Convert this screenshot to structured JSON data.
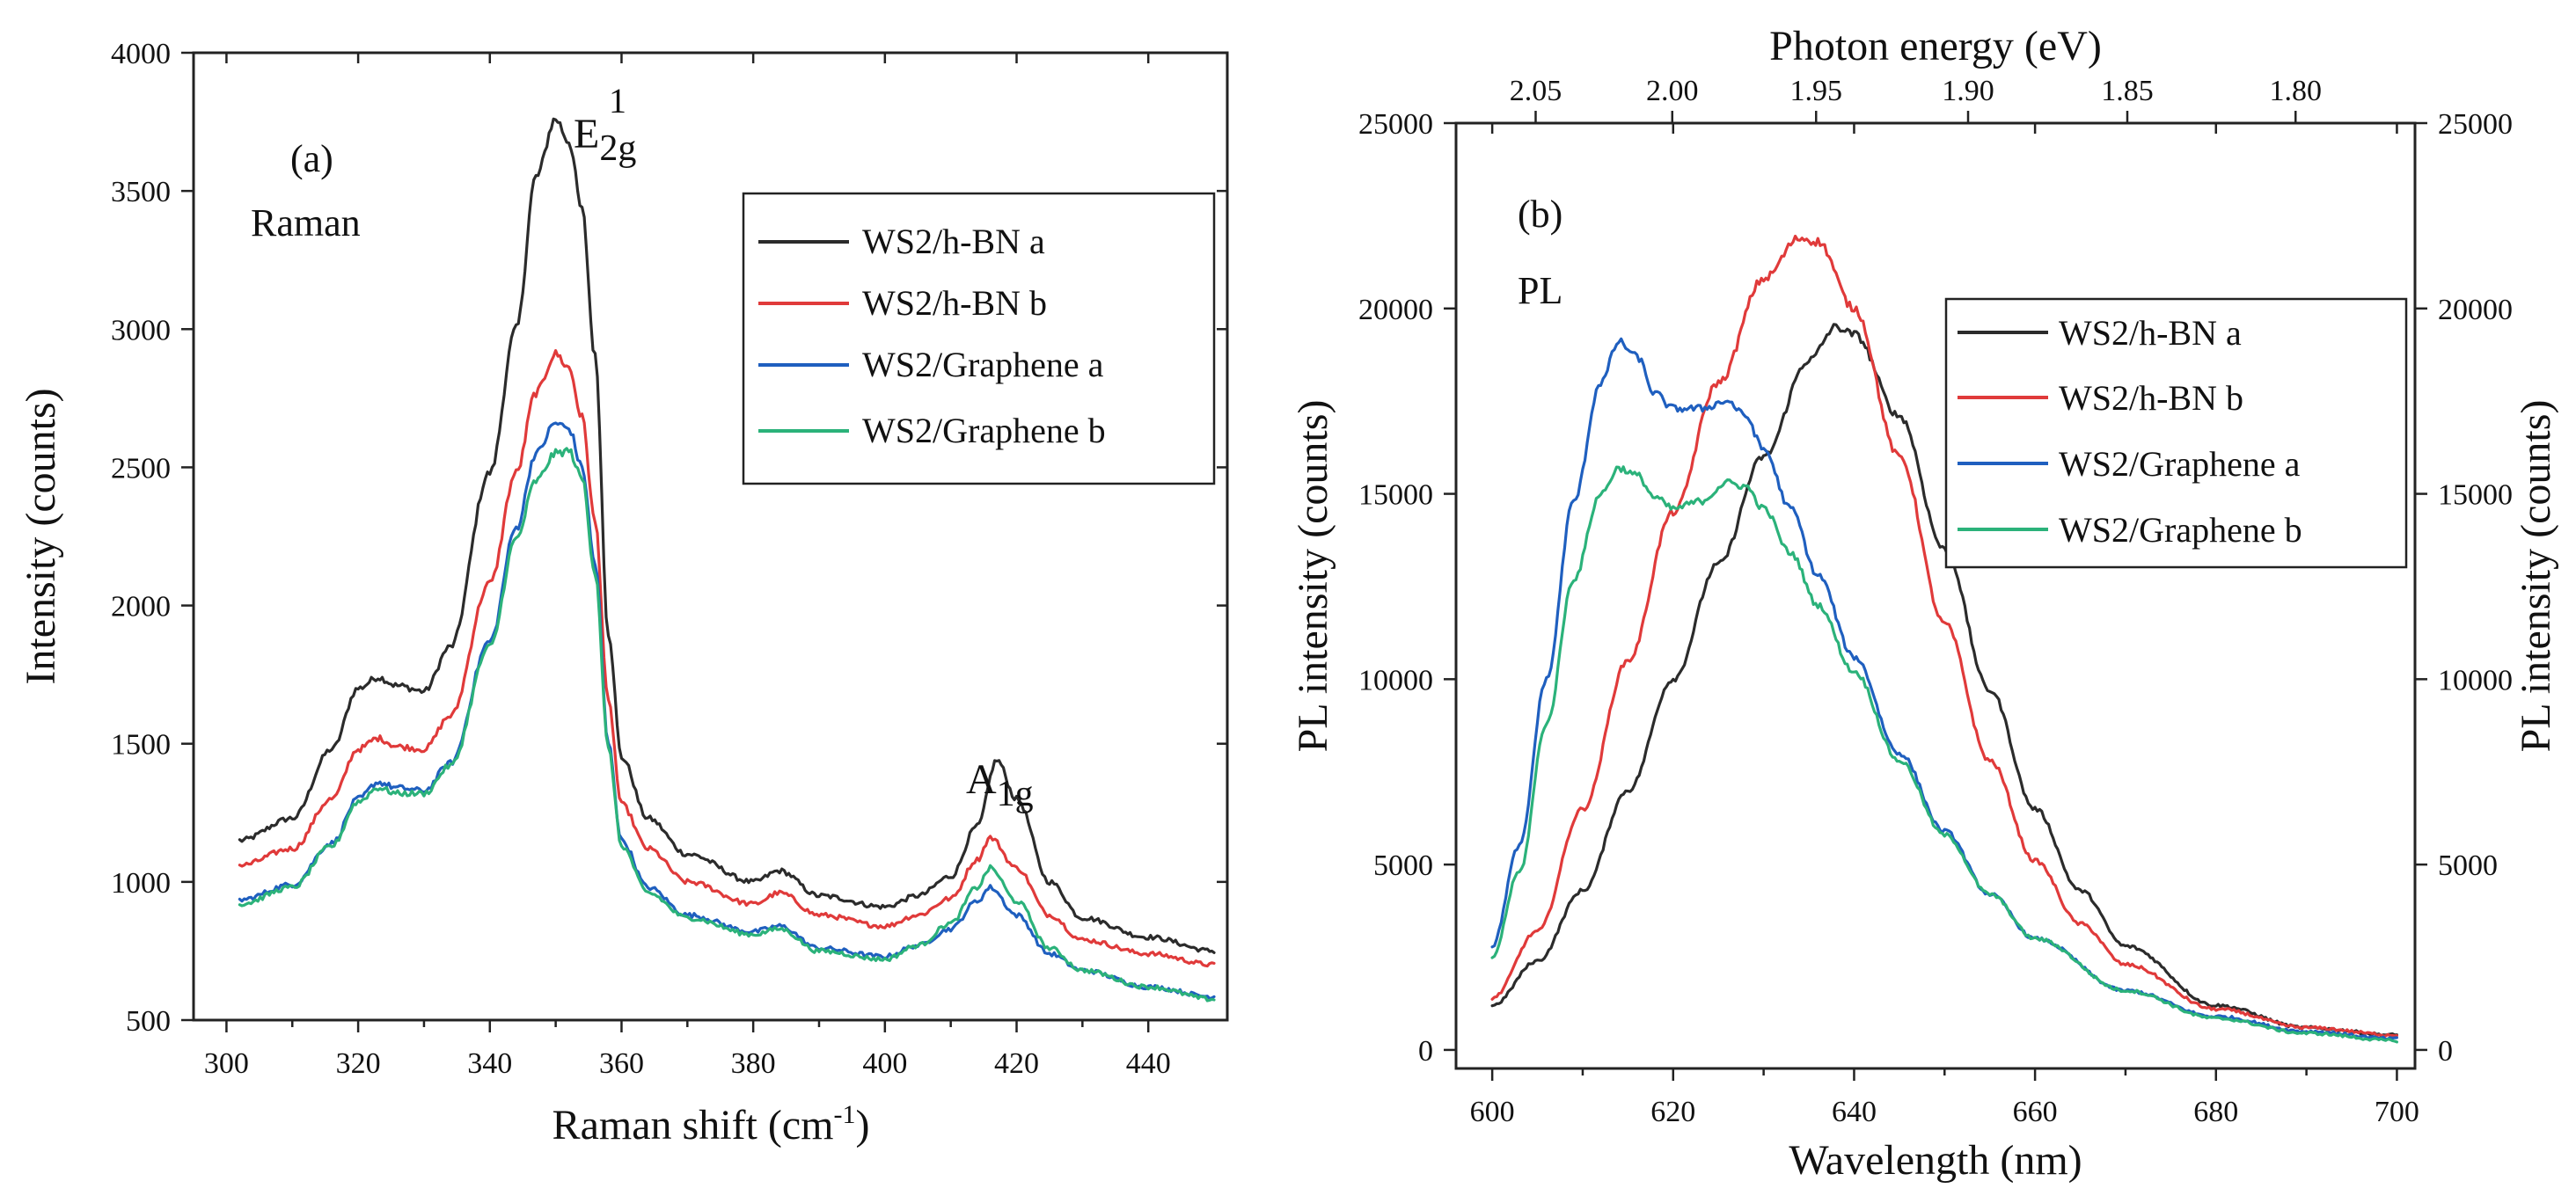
{
  "chart_data": [
    {
      "panel": "(a)",
      "type": "line",
      "annotation": "Raman",
      "xlabel": "Raman shift (cm",
      "xlabel_sup": "-1",
      "xlabel_end": ")",
      "ylabel": "Intensity (counts)",
      "xlim": [
        295,
        452
      ],
      "ylim": [
        500,
        4000
      ],
      "xticks": [
        300,
        320,
        340,
        360,
        380,
        400,
        420,
        440
      ],
      "yticks": [
        500,
        1000,
        1500,
        2000,
        2500,
        3000,
        3500,
        4000
      ],
      "peak_labels": [
        {
          "base": "E",
          "sub": "2g",
          "sup": "1",
          "x": 350,
          "y": 3760
        },
        {
          "base": "A",
          "sub": "1g",
          "x": 417,
          "y": 1480
        }
      ],
      "legend": [
        "WS2/h-BN a",
        "WS2/h-BN b",
        "WS2/Graphene a",
        "WS2/Graphene b"
      ],
      "series": [
        {
          "name": "WS2/h-BN a",
          "color": "#2b2b2b",
          "x": [
            302,
            310,
            316,
            320,
            323,
            326,
            330,
            334,
            340,
            344,
            347,
            350,
            352,
            354,
            356,
            358,
            360,
            364,
            370,
            380,
            384,
            390,
            400,
            405,
            410,
            414,
            417,
            420,
            425,
            430,
            440,
            450
          ],
          "y": [
            1150,
            1230,
            1480,
            1700,
            1740,
            1710,
            1690,
            1850,
            2480,
            3000,
            3550,
            3760,
            3680,
            3430,
            2900,
            1900,
            1450,
            1230,
            1100,
            1000,
            1040,
            950,
            910,
            950,
            1020,
            1200,
            1440,
            1300,
            1000,
            870,
            800,
            750
          ]
        },
        {
          "name": "WS2/h-BN b",
          "color": "#e03a3a",
          "x": [
            302,
            310,
            316,
            320,
            323,
            326,
            330,
            334,
            340,
            344,
            347,
            350,
            352,
            354,
            356,
            358,
            360,
            364,
            370,
            380,
            384,
            390,
            400,
            405,
            410,
            414,
            416,
            420,
            425,
            430,
            440,
            450
          ],
          "y": [
            1060,
            1120,
            1300,
            1480,
            1520,
            1490,
            1480,
            1600,
            2080,
            2480,
            2770,
            2910,
            2860,
            2680,
            2300,
            1650,
            1280,
            1120,
            1000,
            920,
            960,
            880,
            840,
            880,
            940,
            1080,
            1160,
            1050,
            880,
            790,
            740,
            700
          ]
        },
        {
          "name": "WS2/Graphene a",
          "color": "#1f5fbf",
          "x": [
            302,
            310,
            316,
            320,
            323,
            326,
            330,
            334,
            340,
            344,
            347,
            350,
            352,
            354,
            356,
            358,
            360,
            364,
            370,
            380,
            384,
            390,
            400,
            405,
            410,
            414,
            416,
            420,
            425,
            430,
            440,
            450
          ],
          "y": [
            935,
            990,
            1140,
            1300,
            1360,
            1340,
            1330,
            1430,
            1870,
            2280,
            2550,
            2660,
            2640,
            2500,
            2150,
            1500,
            1150,
            980,
            880,
            820,
            840,
            760,
            730,
            770,
            830,
            930,
            980,
            880,
            740,
            680,
            620,
            585
          ]
        },
        {
          "name": "WS2/Graphene b",
          "color": "#2bb27a",
          "x": [
            302,
            310,
            316,
            320,
            323,
            326,
            330,
            334,
            340,
            344,
            347,
            350,
            352,
            354,
            356,
            358,
            360,
            364,
            370,
            380,
            384,
            390,
            400,
            405,
            410,
            414,
            416,
            420,
            425,
            430,
            440,
            450
          ],
          "y": [
            920,
            980,
            1130,
            1290,
            1340,
            1320,
            1320,
            1420,
            1850,
            2240,
            2450,
            2550,
            2560,
            2460,
            2120,
            1480,
            1130,
            960,
            870,
            810,
            830,
            750,
            720,
            770,
            850,
            980,
            1050,
            930,
            760,
            680,
            620,
            575
          ]
        }
      ]
    },
    {
      "panel": "(b)",
      "type": "line",
      "annotation": "PL",
      "xlabel": "Wavelength (nm)",
      "ylabel": "PL intensity (counts)",
      "ylabel_right": "PL intensity (counts)",
      "x2label": "Photon energy (eV)",
      "xlim": [
        596,
        702
      ],
      "ylim": [
        -500,
        25000
      ],
      "xticks": [
        600,
        620,
        640,
        660,
        680,
        700
      ],
      "yticks": [
        0,
        5000,
        10000,
        15000,
        20000,
        25000
      ],
      "x2ticks": [
        {
          "label": "2.05",
          "nm": 604.8
        },
        {
          "label": "2.00",
          "nm": 619.9
        },
        {
          "label": "1.95",
          "nm": 635.8
        },
        {
          "label": "1.90",
          "nm": 652.6
        },
        {
          "label": "1.85",
          "nm": 670.2
        },
        {
          "label": "1.80",
          "nm": 688.8
        }
      ],
      "legend": [
        "WS2/h-BN a",
        "WS2/h-BN b",
        "WS2/Graphene a",
        "WS2/Graphene b"
      ],
      "series": [
        {
          "name": "WS2/h-BN a",
          "color": "#2b2b2b",
          "x": [
            600,
            605,
            610,
            615,
            620,
            625,
            630,
            635,
            638,
            640,
            645,
            650,
            655,
            660,
            665,
            670,
            680,
            690,
            700
          ],
          "y": [
            1200,
            2400,
            4300,
            7000,
            10000,
            13100,
            16000,
            18600,
            19500,
            19300,
            17100,
            13500,
            9700,
            6500,
            4300,
            2800,
            1200,
            600,
            400
          ]
        },
        {
          "name": "WS2/h-BN b",
          "color": "#e03a3a",
          "x": [
            600,
            605,
            610,
            615,
            620,
            625,
            630,
            634,
            636,
            640,
            645,
            650,
            655,
            660,
            665,
            670,
            680,
            690,
            700
          ],
          "y": [
            1400,
            3200,
            6500,
            10500,
            14500,
            18000,
            20800,
            21900,
            21800,
            20000,
            16000,
            11500,
            7800,
            5100,
            3400,
            2300,
            1100,
            600,
            400
          ]
        },
        {
          "name": "WS2/Graphene a",
          "color": "#1f5fbf",
          "x": [
            600,
            603,
            606,
            609,
            612,
            614,
            616,
            618,
            620,
            623,
            626,
            628,
            630,
            633,
            636,
            640,
            645,
            650,
            655,
            660,
            670,
            680,
            690,
            700
          ],
          "y": [
            2800,
            5500,
            10000,
            14800,
            18000,
            19100,
            18700,
            17700,
            17300,
            17300,
            17500,
            17100,
            16200,
            14600,
            12800,
            10600,
            8000,
            5900,
            4200,
            3000,
            1600,
            900,
            500,
            300
          ]
        },
        {
          "name": "WS2/Graphene b",
          "color": "#2bb27a",
          "x": [
            600,
            603,
            606,
            609,
            612,
            614,
            616,
            618,
            620,
            623,
            626,
            628,
            630,
            633,
            636,
            640,
            645,
            650,
            655,
            660,
            670,
            680,
            690,
            700
          ],
          "y": [
            2500,
            4800,
            8800,
            12700,
            15000,
            15700,
            15500,
            14900,
            14600,
            14800,
            15300,
            15200,
            14600,
            13400,
            12000,
            10200,
            7800,
            5800,
            4200,
            3000,
            1600,
            850,
            450,
            250
          ]
        }
      ]
    }
  ]
}
